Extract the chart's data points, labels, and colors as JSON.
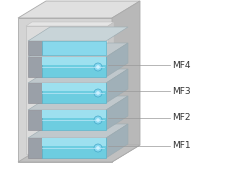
{
  "background_color": "#ffffff",
  "fuse_labels": [
    "MF1",
    "MF2",
    "MF3",
    "MF4"
  ],
  "label_fontsize": 6.5,
  "label_color": "#333333",
  "box_front_color": "#d4d4d4",
  "box_side_color": "#b8b8b8",
  "box_top_color": "#e0e0e0",
  "box_inner_color": "#e8e8e8",
  "fuse_cyan_color": "#6dcde0",
  "fuse_cyan_light": "#9de0ef",
  "fuse_gray_color": "#9aa0a8",
  "fuse_dark_color": "#7a8088",
  "fuse_separator_color": "#c8d8e0",
  "line_color": "#999999",
  "shx": 0.12,
  "shy": 0.07
}
